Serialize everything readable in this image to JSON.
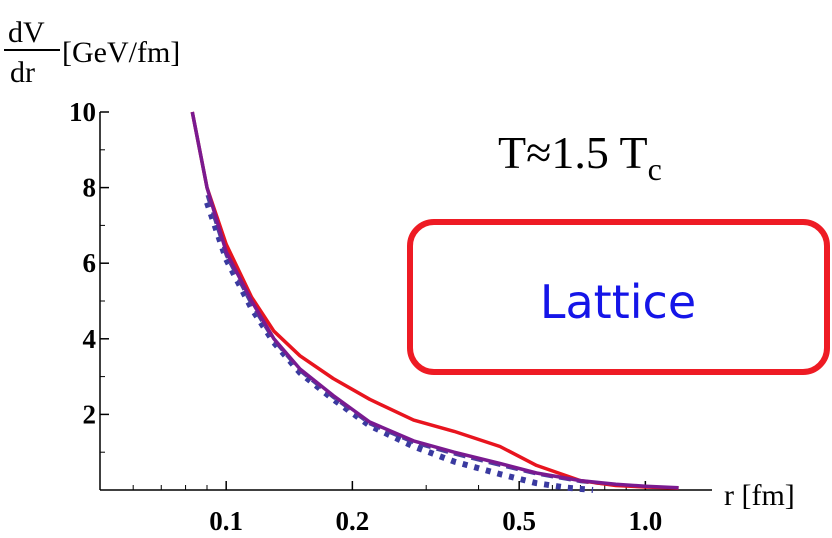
{
  "chart_data": {
    "type": "line",
    "ylabel_numerator": "dV",
    "ylabel_denominator": "dr",
    "ylabel_unit": "[GeV/fm]",
    "xlabel": "r [fm]",
    "annotation": {
      "main": "T≈1.5 T",
      "subscript": "c"
    },
    "boxed_label": "Lattice",
    "x_scale": "log",
    "xlim": [
      0.05,
      1.35
    ],
    "ylim": [
      0,
      10
    ],
    "x_ticks": [
      {
        "value": 0.1,
        "label": "0.1"
      },
      {
        "value": 0.2,
        "label": "0.2"
      },
      {
        "value": 0.5,
        "label": "0.5"
      },
      {
        "value": 1.0,
        "label": "1.0"
      }
    ],
    "y_ticks": [
      {
        "value": 2,
        "label": "2"
      },
      {
        "value": 4,
        "label": "4"
      },
      {
        "value": 6,
        "label": "6"
      },
      {
        "value": 8,
        "label": "8"
      },
      {
        "value": 10,
        "label": "10"
      }
    ],
    "series": [
      {
        "color": "#e8141e",
        "style": "solid",
        "x": [
          0.083,
          0.09,
          0.1,
          0.115,
          0.13,
          0.15,
          0.18,
          0.22,
          0.28,
          0.35,
          0.45,
          0.55,
          0.7,
          0.85,
          1.0,
          1.2
        ],
        "y": [
          10.0,
          8.0,
          6.5,
          5.1,
          4.2,
          3.55,
          2.95,
          2.4,
          1.85,
          1.55,
          1.15,
          0.65,
          0.25,
          0.12,
          0.08,
          0.05
        ]
      },
      {
        "color": "#7a1a90",
        "style": "solid",
        "x": [
          0.083,
          0.09,
          0.1,
          0.115,
          0.13,
          0.15,
          0.18,
          0.22,
          0.28,
          0.35,
          0.45,
          0.55,
          0.7,
          0.85,
          1.0,
          1.2
        ],
        "y": [
          10.0,
          8.0,
          6.3,
          5.0,
          4.0,
          3.2,
          2.5,
          1.8,
          1.3,
          1.0,
          0.7,
          0.45,
          0.25,
          0.15,
          0.1,
          0.06
        ]
      },
      {
        "color": "#4a3f9e",
        "style": "dashed",
        "x": [
          0.09,
          0.1,
          0.115,
          0.13,
          0.15,
          0.18,
          0.22,
          0.28,
          0.35,
          0.45,
          0.55,
          0.7,
          0.85,
          1.0,
          1.2
        ],
        "y": [
          7.8,
          6.2,
          4.9,
          3.95,
          3.15,
          2.45,
          1.75,
          1.25,
          0.95,
          0.65,
          0.42,
          0.22,
          0.13,
          0.09,
          0.05
        ]
      },
      {
        "color": "#3a3aa0",
        "style": "dotted",
        "x": [
          0.09,
          0.1,
          0.115,
          0.13,
          0.15,
          0.18,
          0.22,
          0.28,
          0.35,
          0.45,
          0.55,
          0.65,
          0.75
        ],
        "y": [
          7.6,
          6.1,
          4.8,
          3.9,
          3.1,
          2.4,
          1.7,
          1.15,
          0.75,
          0.42,
          0.18,
          0.06,
          0.0
        ]
      }
    ],
    "colors": {
      "box_border": "#ee1b24",
      "box_text": "#1515e8",
      "axis": "#000000"
    }
  }
}
